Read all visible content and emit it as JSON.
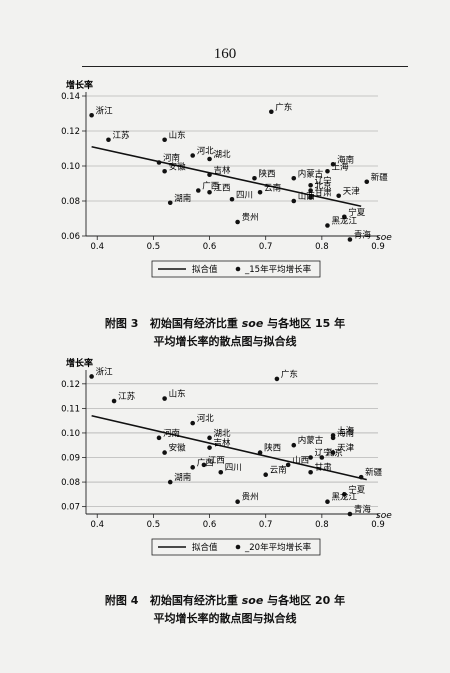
{
  "page_number": "160",
  "figures": [
    {
      "caption_prefix": "附图 3",
      "caption_line1_a": "初始国有经济比重 ",
      "caption_soe": "soe",
      "caption_line1_b": " 与各地区 15 年",
      "caption_line2": "平均增长率的散点图与拟合线"
    },
    {
      "caption_prefix": "附图 4",
      "caption_line1_a": "初始国有经济比重 ",
      "caption_soe": "soe",
      "caption_line1_b": " 与各地区 20 年",
      "caption_line2": "平均增长率的散点图与拟合线"
    }
  ],
  "chart_data": [
    {
      "type": "scatter",
      "ylabel": "增长率",
      "xlabel": "soe",
      "xlim": [
        0.38,
        0.9
      ],
      "ylim": [
        0.06,
        0.14
      ],
      "xticks": [
        0.4,
        0.5,
        0.6,
        0.7,
        0.8,
        0.9
      ],
      "xtick_labels": [
        "0.4",
        "0.5",
        "0.6",
        "0.7",
        "0.8",
        "0.9"
      ],
      "yticks": [
        0.06,
        0.08,
        0.1,
        0.12,
        0.14
      ],
      "ytick_labels": [
        "0.06",
        "0.08",
        "0.10",
        "0.12",
        "0.14"
      ],
      "grid": true,
      "legend_position": "bottom",
      "legend": [
        "拟合值",
        "_15年平均增长率"
      ],
      "fit_line": {
        "x": [
          0.39,
          0.87
        ],
        "y": [
          0.111,
          0.077
        ]
      },
      "points": [
        {
          "label": "浙江",
          "x": 0.39,
          "y": 0.129
        },
        {
          "label": "广东",
          "x": 0.71,
          "y": 0.131
        },
        {
          "label": "江苏",
          "x": 0.42,
          "y": 0.115
        },
        {
          "label": "山东",
          "x": 0.52,
          "y": 0.115
        },
        {
          "label": "河北",
          "x": 0.57,
          "y": 0.106
        },
        {
          "label": "河南",
          "x": 0.51,
          "y": 0.102
        },
        {
          "label": "湖北",
          "x": 0.6,
          "y": 0.104
        },
        {
          "label": "海南",
          "x": 0.82,
          "y": 0.101
        },
        {
          "label": "安徽",
          "x": 0.52,
          "y": 0.097
        },
        {
          "label": "吉林",
          "x": 0.6,
          "y": 0.095
        },
        {
          "label": "上海",
          "x": 0.81,
          "y": 0.097
        },
        {
          "label": "陕西",
          "x": 0.68,
          "y": 0.093
        },
        {
          "label": "内蒙古",
          "x": 0.75,
          "y": 0.093
        },
        {
          "label": "新疆",
          "x": 0.88,
          "y": 0.091
        },
        {
          "label": "辽宁",
          "x": 0.78,
          "y": 0.089
        },
        {
          "label": "广西",
          "x": 0.58,
          "y": 0.086
        },
        {
          "label": "江西",
          "x": 0.6,
          "y": 0.085
        },
        {
          "label": "北京",
          "x": 0.78,
          "y": 0.086
        },
        {
          "label": "天津",
          "x": 0.83,
          "y": 0.083
        },
        {
          "label": "四川",
          "x": 0.64,
          "y": 0.081
        },
        {
          "label": "云南",
          "x": 0.69,
          "y": 0.085
        },
        {
          "label": "甘肃",
          "x": 0.78,
          "y": 0.082
        },
        {
          "label": "湖南",
          "x": 0.53,
          "y": 0.079
        },
        {
          "label": "山西",
          "x": 0.75,
          "y": 0.08
        },
        {
          "label": "宁夏",
          "x": 0.84,
          "y": 0.071
        },
        {
          "label": "贵州",
          "x": 0.65,
          "y": 0.068
        },
        {
          "label": "黑龙江",
          "x": 0.81,
          "y": 0.066
        },
        {
          "label": "青海",
          "x": 0.85,
          "y": 0.058
        }
      ]
    },
    {
      "type": "scatter",
      "ylabel": "增长率",
      "xlabel": "soe",
      "xlim": [
        0.38,
        0.9
      ],
      "ylim": [
        0.067,
        0.124
      ],
      "xticks": [
        0.4,
        0.5,
        0.6,
        0.7,
        0.8,
        0.9
      ],
      "xtick_labels": [
        "0.4",
        "0.5",
        "0.6",
        "0.7",
        "0.8",
        "0.9"
      ],
      "yticks": [
        0.07,
        0.08,
        0.09,
        0.1,
        0.11,
        0.12
      ],
      "ytick_labels": [
        "0.07",
        "0.08",
        "0.09",
        "0.10",
        "0.11",
        "0.12"
      ],
      "grid": true,
      "legend_position": "bottom",
      "legend": [
        "拟合值",
        "_20年平均增长率"
      ],
      "fit_line": {
        "x": [
          0.39,
          0.88
        ],
        "y": [
          0.107,
          0.081
        ]
      },
      "points": [
        {
          "label": "浙江",
          "x": 0.39,
          "y": 0.123
        },
        {
          "label": "广东",
          "x": 0.72,
          "y": 0.122
        },
        {
          "label": "江苏",
          "x": 0.43,
          "y": 0.113
        },
        {
          "label": "山东",
          "x": 0.52,
          "y": 0.114
        },
        {
          "label": "河北",
          "x": 0.57,
          "y": 0.104
        },
        {
          "label": "上海",
          "x": 0.82,
          "y": 0.099
        },
        {
          "label": "河南",
          "x": 0.51,
          "y": 0.098
        },
        {
          "label": "湖北",
          "x": 0.6,
          "y": 0.098
        },
        {
          "label": "海南",
          "x": 0.82,
          "y": 0.098
        },
        {
          "label": "内蒙古",
          "x": 0.75,
          "y": 0.095
        },
        {
          "label": "吉林",
          "x": 0.6,
          "y": 0.094
        },
        {
          "label": "陕西",
          "x": 0.69,
          "y": 0.092
        },
        {
          "label": "安徽",
          "x": 0.52,
          "y": 0.092
        },
        {
          "label": "天津",
          "x": 0.82,
          "y": 0.092
        },
        {
          "label": "辽宁",
          "x": 0.78,
          "y": 0.09
        },
        {
          "label": "江西",
          "x": 0.59,
          "y": 0.087
        },
        {
          "label": "山西",
          "x": 0.74,
          "y": 0.087
        },
        {
          "label": "广西",
          "x": 0.57,
          "y": 0.086
        },
        {
          "label": "北京",
          "x": 0.8,
          "y": 0.09
        },
        {
          "label": "四川",
          "x": 0.62,
          "y": 0.084
        },
        {
          "label": "云南",
          "x": 0.7,
          "y": 0.083
        },
        {
          "label": "甘肃",
          "x": 0.78,
          "y": 0.084
        },
        {
          "label": "新疆",
          "x": 0.87,
          "y": 0.082
        },
        {
          "label": "湖南",
          "x": 0.53,
          "y": 0.08
        },
        {
          "label": "宁夏",
          "x": 0.84,
          "y": 0.075
        },
        {
          "label": "贵州",
          "x": 0.65,
          "y": 0.072
        },
        {
          "label": "黑龙江",
          "x": 0.81,
          "y": 0.072
        },
        {
          "label": "青海",
          "x": 0.85,
          "y": 0.067
        }
      ]
    }
  ]
}
